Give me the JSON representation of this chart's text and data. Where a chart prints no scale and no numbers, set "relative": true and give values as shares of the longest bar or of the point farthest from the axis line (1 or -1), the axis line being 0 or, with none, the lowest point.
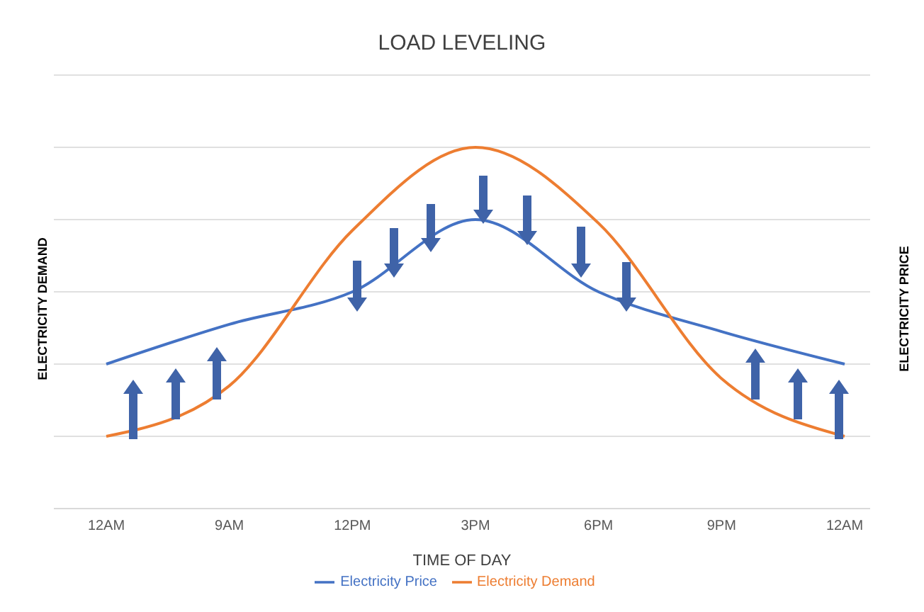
{
  "chart_data": {
    "type": "line",
    "title": "LOAD LEVELING",
    "xlabel": "TIME OF DAY",
    "ylabel": "ELECTRICITY DEMAND",
    "y2label": "ELECTRICITY PRICE",
    "relative": true,
    "categories": [
      "12AM",
      "9AM",
      "12PM",
      "3PM",
      "6PM",
      "9PM",
      "12AM"
    ],
    "series": [
      {
        "name": "Electricity Price",
        "color": "#4472c4",
        "values": [
          0.4,
          0.51,
          0.6,
          0.8,
          0.6,
          0.49,
          0.4
        ]
      },
      {
        "name": "Electricity Demand",
        "color": "#ed7d31",
        "values": [
          0.2,
          0.34,
          0.77,
          1,
          0.79,
          0.36,
          0.2
        ]
      }
    ],
    "grid": "y",
    "legend": "bottom",
    "marker": "none",
    "line_style": "solid"
  }
}
